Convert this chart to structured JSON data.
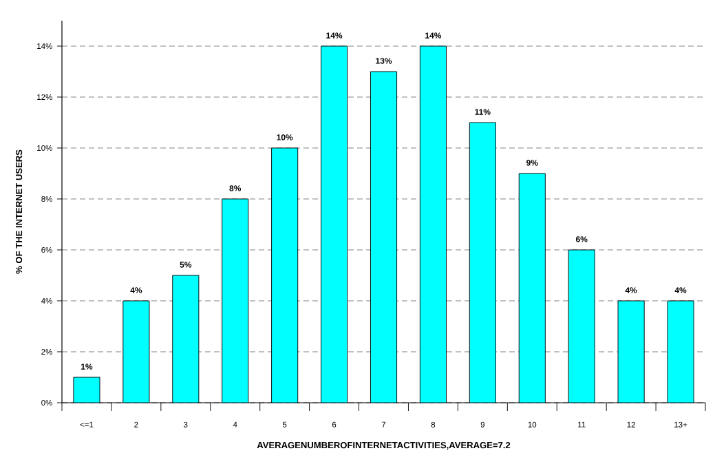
{
  "chart_data": {
    "type": "bar",
    "xlabel": "AVERAGENUMBEROFINTERNETACTIVITIES,AVERAGE=7.2",
    "ylabel": "% OF THE INTERNET USERS",
    "categories": [
      "<=1",
      "2",
      "3",
      "4",
      "5",
      "6",
      "7",
      "8",
      "9",
      "10",
      "11",
      "12",
      "13+"
    ],
    "values": [
      1,
      4,
      5,
      8,
      10,
      14,
      13,
      14,
      11,
      9,
      6,
      4,
      4
    ],
    "value_labels": [
      "1%",
      "4%",
      "5%",
      "8%",
      "10%",
      "14%",
      "13%",
      "14%",
      "11%",
      "9%",
      "6%",
      "4%",
      "4%"
    ],
    "color": "#00ffff",
    "ylim": [
      0,
      15
    ],
    "yticks": [
      {
        "value": 0,
        "label": "0%"
      },
      {
        "value": 2,
        "label": "2%"
      },
      {
        "value": 4,
        "label": "4%"
      },
      {
        "value": 6,
        "label": "6%"
      },
      {
        "value": 8,
        "label": "8%"
      },
      {
        "value": 10,
        "label": "10%"
      },
      {
        "value": 12,
        "label": "12%"
      },
      {
        "value": 14,
        "label": "14%"
      }
    ],
    "grid": "y"
  }
}
